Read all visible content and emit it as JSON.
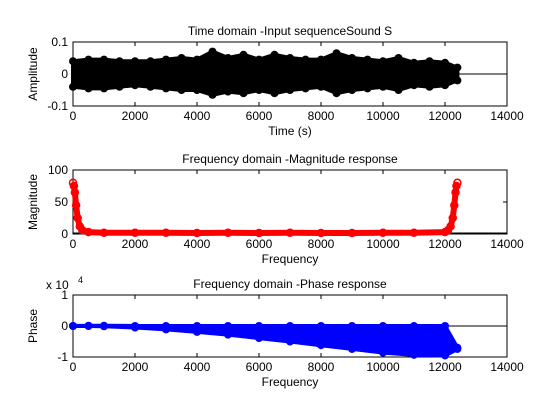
{
  "chart_data": [
    {
      "type": "line",
      "title": "Time domain -Input sequenceSound S",
      "xlabel": "Time (s)",
      "ylabel": "Amplitude",
      "xlim": [
        0,
        14000
      ],
      "ylim": [
        -0.1,
        0.1
      ],
      "xticks": [
        "0",
        "2000",
        "4000",
        "6000",
        "8000",
        "10000",
        "12000",
        "14000"
      ],
      "yticks": [
        "-0.1",
        "0",
        "0.1"
      ],
      "exponent_label": "",
      "signal_end": 12400,
      "color": "#000000",
      "series": [
        {
          "x": [
            0,
            500,
            1000,
            1500,
            2000,
            2500,
            3000,
            3500,
            4000,
            4500,
            5000,
            5500,
            6000,
            6500,
            7000,
            7500,
            8000,
            8500,
            9000,
            9500,
            10000,
            10500,
            11000,
            11500,
            12000,
            12400
          ],
          "y_max": [
            0.04,
            0.045,
            0.045,
            0.04,
            0.04,
            0.04,
            0.045,
            0.05,
            0.045,
            0.07,
            0.05,
            0.06,
            0.045,
            0.06,
            0.05,
            0.045,
            0.045,
            0.065,
            0.05,
            0.045,
            0.04,
            0.05,
            0.035,
            0.04,
            0.035,
            0.02
          ],
          "y_min": [
            -0.04,
            -0.045,
            -0.045,
            -0.04,
            -0.035,
            -0.04,
            -0.045,
            -0.05,
            -0.05,
            -0.065,
            -0.055,
            -0.06,
            -0.05,
            -0.06,
            -0.05,
            -0.045,
            -0.04,
            -0.06,
            -0.05,
            -0.045,
            -0.04,
            -0.05,
            -0.035,
            -0.04,
            -0.035,
            -0.02
          ]
        }
      ]
    },
    {
      "type": "scatter",
      "title": "Frequency domain -Magnitude response",
      "xlabel": "Frequency",
      "ylabel": "Magnitude",
      "xlim": [
        0,
        14000
      ],
      "ylim": [
        0,
        100
      ],
      "xticks": [
        "0",
        "2000",
        "4000",
        "6000",
        "8000",
        "10000",
        "12000",
        "14000"
      ],
      "yticks": [
        "0",
        "50",
        "100"
      ],
      "exponent_label": "",
      "color": "#ff0000",
      "series": [
        {
          "x": [
            0,
            30,
            60,
            100,
            150,
            220,
            300,
            500,
            1000,
            2000,
            3000,
            4000,
            5000,
            6000,
            7000,
            8000,
            9000,
            10000,
            11000,
            12000,
            12100,
            12180,
            12250,
            12300,
            12340,
            12370,
            12400
          ],
          "y": [
            80,
            75,
            65,
            45,
            25,
            12,
            6,
            3,
            2,
            2,
            2,
            1.5,
            2,
            1.5,
            2,
            1.5,
            1.5,
            2,
            2,
            3,
            6,
            12,
            25,
            45,
            65,
            75,
            80
          ]
        }
      ]
    },
    {
      "type": "scatter",
      "title": "Frequency domain -Phase response",
      "xlabel": "Frequency",
      "ylabel": "Phase",
      "xlim": [
        0,
        14000
      ],
      "ylim": [
        -10000,
        10000
      ],
      "xticks": [
        "0",
        "2000",
        "4000",
        "6000",
        "8000",
        "10000",
        "12000",
        "14000"
      ],
      "yticks": [
        "-1",
        "0",
        "1"
      ],
      "exponent_label": "x 10",
      "exponent_power": "4",
      "color": "#0000ff",
      "series": [
        {
          "x": [
            0,
            500,
            1000,
            2000,
            3000,
            4000,
            5000,
            6000,
            7000,
            8000,
            9000,
            10000,
            11000,
            12000,
            12400
          ],
          "y_max": [
            0,
            100,
            100,
            0,
            0,
            0,
            0,
            0,
            0,
            0,
            0,
            0,
            0,
            0,
            -7000
          ],
          "y_min": [
            0,
            0,
            -100,
            -500,
            -1100,
            -1900,
            -2800,
            -3900,
            -5000,
            -6200,
            -7400,
            -8600,
            -9300,
            -9500,
            -7400
          ]
        }
      ]
    }
  ]
}
